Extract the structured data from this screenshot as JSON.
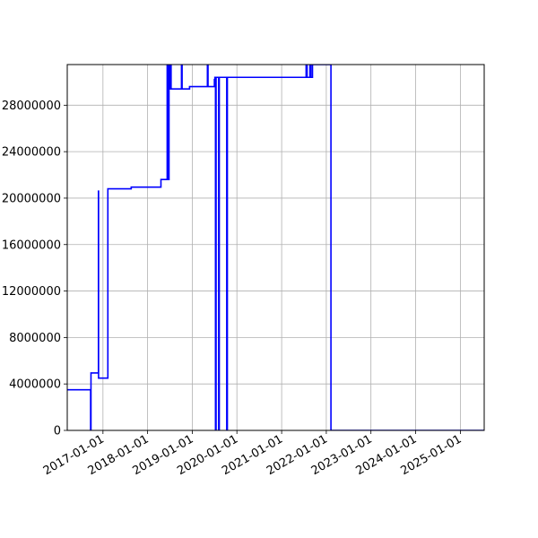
{
  "chart_data": {
    "type": "line",
    "title": "",
    "xlabel": "",
    "ylabel": "",
    "x_axis_type": "date",
    "xlim": [
      "2016-03-15",
      "2025-07-15"
    ],
    "ylim": [
      0,
      31500000
    ],
    "grid": true,
    "legend": "none",
    "line_color": "#0000ff",
    "x_ticks": [
      "2017-01-01",
      "2018-01-01",
      "2019-01-01",
      "2020-01-01",
      "2021-01-01",
      "2022-01-01",
      "2023-01-01",
      "2024-01-01",
      "2025-01-01"
    ],
    "y_ticks": [
      0,
      4000000,
      8000000,
      12000000,
      16000000,
      20000000,
      24000000,
      28000000
    ],
    "y_tick_labels": [
      "0",
      "4000000",
      "8000000",
      "12000000",
      "16000000",
      "20000000",
      "24000000",
      "28000000"
    ],
    "series": [
      {
        "x": [
          "2016-03-15",
          "2016-09-22",
          "2016-09-22",
          "2016-09-25",
          "2016-09-25",
          "2016-10-10",
          "2016-10-10",
          "2016-11-25",
          "2016-11-25",
          "2016-11-26",
          "2016-11-26",
          "2017-02-10",
          "2017-02-10",
          "2017-08-20",
          "2017-08-20",
          "2018-04-20",
          "2018-04-20",
          "2018-06-10",
          "2018-06-10",
          "2018-06-12",
          "2018-06-12",
          "2018-06-15",
          "2018-06-15",
          "2018-06-20",
          "2018-06-20",
          "2018-06-25",
          "2018-06-25",
          "2018-06-28",
          "2018-06-28",
          "2018-07-08",
          "2018-07-08",
          "2018-07-12",
          "2018-07-12",
          "2018-07-18",
          "2018-07-18",
          "2018-10-05",
          "2018-10-05",
          "2018-10-10",
          "2018-10-10",
          "2018-12-10",
          "2018-12-10",
          "2019-05-05",
          "2019-05-05",
          "2019-05-10",
          "2019-05-10",
          "2019-07-01",
          "2019-07-01",
          "2019-07-05",
          "2019-07-05",
          "2019-07-10",
          "2019-07-10",
          "2019-07-15",
          "2019-07-15",
          "2019-08-05",
          "2019-08-05",
          "2019-08-10",
          "2019-08-10",
          "2019-08-20",
          "2019-08-20",
          "2019-10-10",
          "2019-10-10",
          "2019-10-15",
          "2019-10-15",
          "2021-07-20",
          "2021-07-20",
          "2021-07-28",
          "2021-07-28",
          "2021-08-05",
          "2021-08-05",
          "2021-08-20",
          "2021-08-20",
          "2021-08-28",
          "2021-08-28",
          "2021-09-10",
          "2021-09-10",
          "2022-02-08",
          "2022-02-08",
          "2025-07-15"
        ],
        "y": [
          3500000,
          3500000,
          0,
          0,
          4950000,
          4950000,
          4950000,
          4950000,
          20600000,
          20600000,
          4500000,
          4500000,
          20800000,
          20800000,
          20950000,
          20950000,
          21600000,
          21600000,
          31500000,
          31500000,
          22000000,
          22000000,
          31500000,
          31500000,
          21600000,
          21600000,
          31500000,
          31500000,
          29400000,
          29400000,
          31500000,
          31500000,
          29400000,
          29400000,
          29400000,
          29400000,
          31500000,
          31500000,
          29400000,
          29400000,
          29600000,
          29600000,
          31500000,
          31500000,
          29600000,
          29600000,
          30200000,
          30200000,
          30400000,
          30400000,
          0,
          0,
          30400000,
          30400000,
          0,
          0,
          30400000,
          30400000,
          30400000,
          30400000,
          0,
          0,
          30400000,
          30400000,
          31500000,
          31500000,
          30400000,
          30400000,
          30400000,
          30400000,
          31500000,
          31500000,
          30400000,
          30400000,
          31500000,
          31500000,
          0,
          0
        ]
      }
    ]
  }
}
